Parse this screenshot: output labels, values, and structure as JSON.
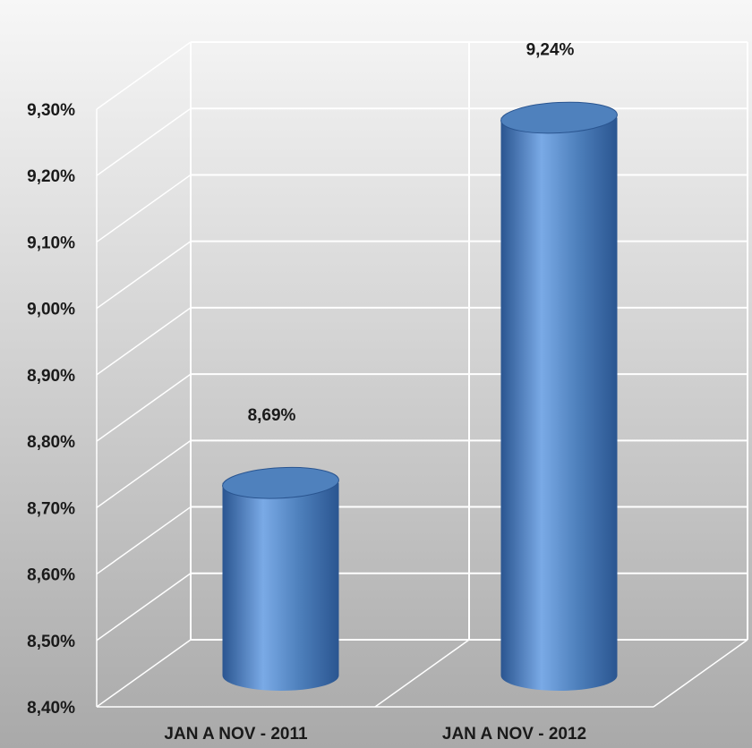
{
  "chart_data": {
    "type": "bar",
    "style": "3d-cylinder",
    "categories": [
      "JAN A NOV - 2011",
      "JAN A NOV - 2012"
    ],
    "values": [
      8.69,
      9.24
    ],
    "data_labels": [
      "8,69%",
      "9,24%"
    ],
    "ylim": [
      8.4,
      9.3
    ],
    "yticks": [
      "8,40%",
      "8,50%",
      "8,60%",
      "8,70%",
      "8,80%",
      "8,90%",
      "9,00%",
      "9,10%",
      "9,20%",
      "9,30%"
    ],
    "grid": true,
    "legend": "none",
    "colors": {
      "bar": "#4f81bd",
      "bar_light": "#7aaae6",
      "bar_dark": "#2a5590",
      "background_top": "#f7f7f7",
      "background_bottom": "#a9a9a9",
      "grid": "#ffffff"
    }
  }
}
